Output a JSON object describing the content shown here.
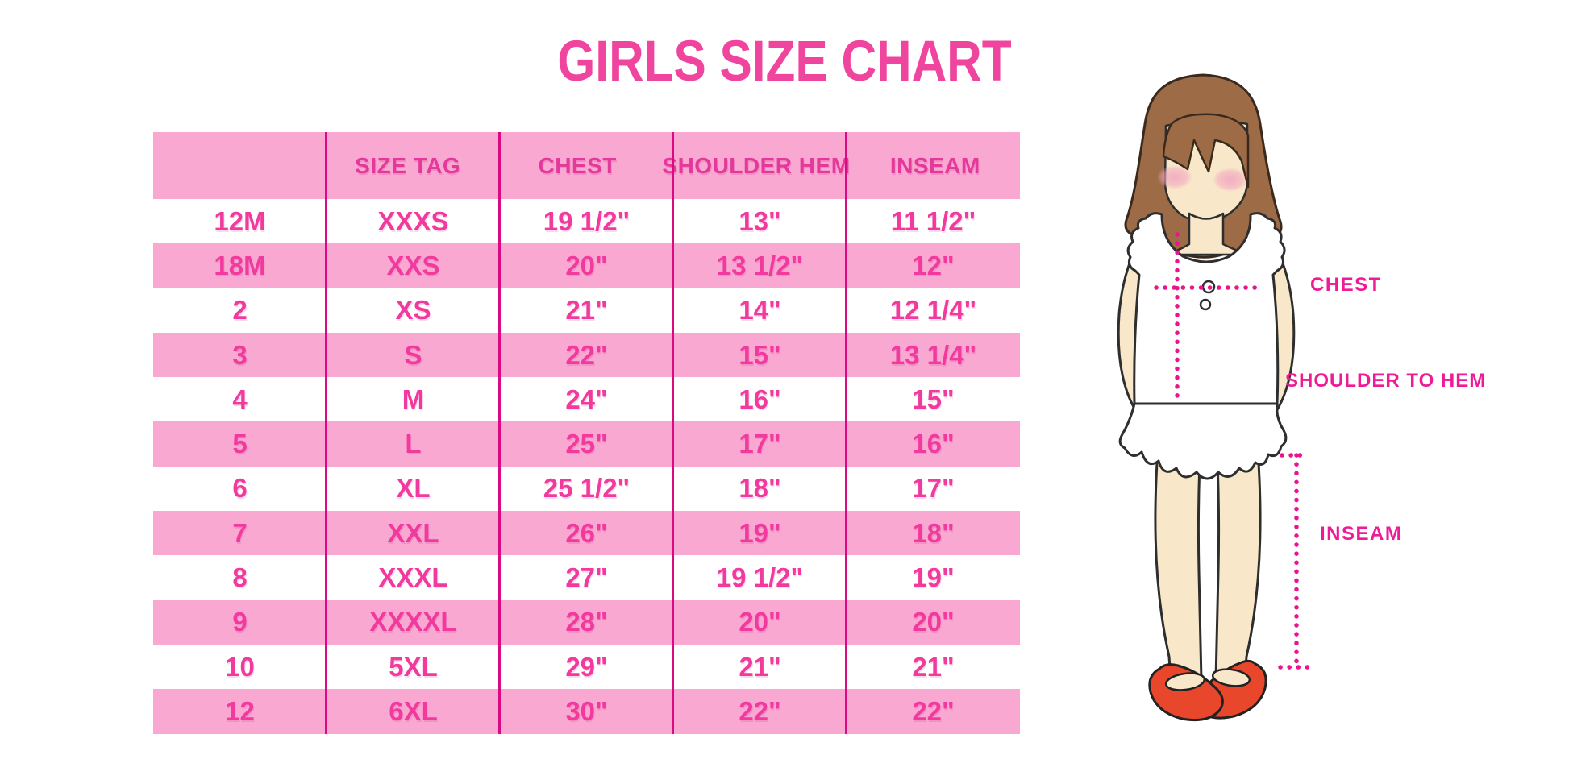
{
  "chart_data": {
    "type": "table",
    "title": "GIRLS SIZE CHART",
    "columns": [
      "",
      "SIZE TAG",
      "CHEST",
      "SHOULDER HEM",
      "INSEAM"
    ],
    "rows": [
      [
        "12M",
        "XXXS",
        "19 1/2\"",
        "13\"",
        "11 1/2\""
      ],
      [
        "18M",
        "XXS",
        "20\"",
        "13 1/2\"",
        "12\""
      ],
      [
        "2",
        "XS",
        "21\"",
        "14\"",
        "12 1/4\""
      ],
      [
        "3",
        "S",
        "22\"",
        "15\"",
        "13 1/4\""
      ],
      [
        "4",
        "M",
        "24\"",
        "16\"",
        "15\""
      ],
      [
        "5",
        "L",
        "25\"",
        "17\"",
        "16\""
      ],
      [
        "6",
        "XL",
        "25 1/2\"",
        "18\"",
        "17\""
      ],
      [
        "7",
        "XXL",
        "26\"",
        "19\"",
        "18\""
      ],
      [
        "8",
        "XXXL",
        "27\"",
        "19 1/2\"",
        "19\""
      ],
      [
        "9",
        "XXXXL",
        "28\"",
        "20\"",
        "20\""
      ],
      [
        "10",
        "5XL",
        "29\"",
        "21\"",
        "21\""
      ],
      [
        "12",
        "6XL",
        "30\"",
        "22\"",
        "22\""
      ]
    ],
    "layout": {
      "striped": true,
      "stripe_order": "white-first",
      "column_dividers": 4
    }
  },
  "diagram": {
    "chest_label": "CHEST",
    "shoulder_to_hem_label": "SHOULDER TO HEM",
    "inseam_label": "INSEAM"
  },
  "colors": {
    "title_pink": "#F0459E",
    "row_pink": "#F9A8D2",
    "divider_magenta": "#DC0A82",
    "cell_text_pink": "#F23A9E",
    "label_magenta": "#EE1A96",
    "dotted_line_magenta": "#EC1390",
    "hair_brown": "#9E6B47",
    "skin": "#F9E7C9",
    "blush": "#F2A8C0",
    "shoe_red": "#E8472B"
  }
}
